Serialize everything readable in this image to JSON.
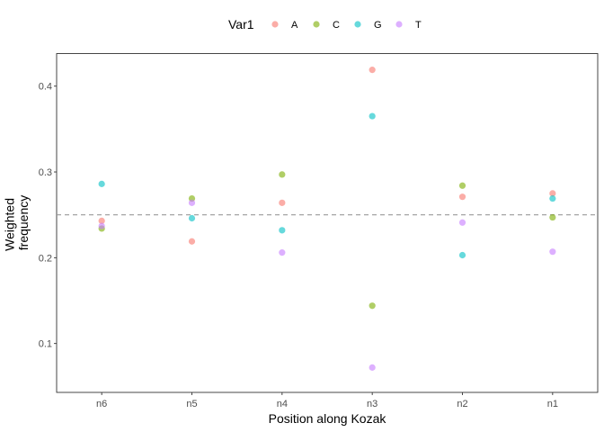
{
  "chart_data": {
    "type": "scatter",
    "xlabel": "Position along Kozak",
    "ylabel_lines": [
      "Weighted",
      "frequency"
    ],
    "categories": [
      "n6",
      "n5",
      "n4",
      "n3",
      "n2",
      "n1"
    ],
    "ylim": [
      0.043,
      0.438
    ],
    "yticks": [
      0.1,
      0.2,
      0.3,
      0.4
    ],
    "ytick_labels": [
      "0.1",
      "0.2",
      "0.3",
      "0.4"
    ],
    "reference_line": {
      "y": 0.25,
      "style": "dashed",
      "color": "#999999"
    },
    "legend": {
      "title": "Var1",
      "position": "top"
    },
    "series": [
      {
        "name": "A",
        "color": "#F8766D",
        "values": [
          0.243,
          0.219,
          0.264,
          0.419,
          0.271,
          0.275
        ]
      },
      {
        "name": "C",
        "color": "#7CAE00",
        "values": [
          0.234,
          0.269,
          0.297,
          0.144,
          0.284,
          0.247
        ]
      },
      {
        "name": "G",
        "color": "#00BFC4",
        "values": [
          0.286,
          0.246,
          0.232,
          0.365,
          0.203,
          0.269
        ]
      },
      {
        "name": "T",
        "color": "#C77CFF",
        "values": [
          0.237,
          0.264,
          0.206,
          0.072,
          0.241,
          0.207
        ]
      }
    ],
    "grid": false
  }
}
